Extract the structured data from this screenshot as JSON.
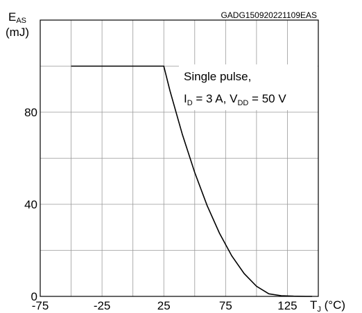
{
  "chart_data": {
    "type": "line",
    "title": "GADG150920221109EAS",
    "ylabel_main": "E",
    "ylabel_sub": "AS",
    "ylabel_unit": "(mJ)",
    "xlabel_main": "T",
    "xlabel_sub": "J",
    "xlabel_unit": " (°C)",
    "xlim": [
      -75,
      150
    ],
    "ylim": [
      0,
      120
    ],
    "x_ticks": [
      -75,
      -25,
      25,
      75,
      125
    ],
    "y_ticks": [
      0,
      40,
      80
    ],
    "x_tick_labels": [
      "-75",
      "-25",
      "25",
      "75",
      "125"
    ],
    "y_tick_labels": [
      "0",
      "40",
      "80"
    ],
    "grid": true,
    "series": [
      {
        "x": [
          -50,
          25,
          30,
          40,
          50,
          60,
          70,
          80,
          90,
          100,
          110,
          120,
          130,
          140,
          145
        ],
        "y": [
          100,
          100,
          89.3,
          70.3,
          53.8,
          39.5,
          27.5,
          17.6,
          9.9,
          4.4,
          1.1,
          0.3,
          0.1,
          0,
          0
        ]
      }
    ],
    "annotation": {
      "line1": "Single pulse,",
      "i_main": "I",
      "i_sub": "D",
      "i_value": " = 3 A, V",
      "v_sub": "DD",
      "v_value": " = 50 V"
    }
  }
}
